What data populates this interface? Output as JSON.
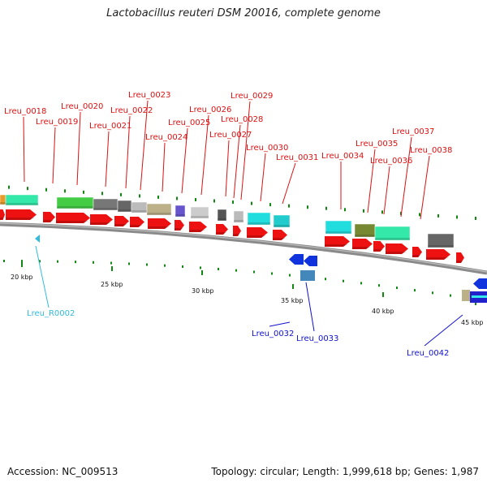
{
  "header": {
    "title": "Lactobacillus reuteri DSM 20016, complete genome"
  },
  "footer": {
    "accession": "Accession: NC_009513",
    "topology": "Topology: circular; Length: 1,999,618 bp; Genes: 1,987"
  },
  "colors": {
    "forward_label": "#dd1111",
    "reverse_label": "#1111cc",
    "rna_label": "#33bbdd",
    "cds": "#ee1111",
    "cds_reverse": "#1133dd",
    "backbone": "#888888",
    "tick": "#118811"
  },
  "scale_ticks": [
    "20 kbp",
    "25 kbp",
    "30 kbp",
    "35 kbp",
    "40 kbp",
    "45 kbp"
  ],
  "forward_genes": [
    "Lreu_0018",
    "Lreu_0019",
    "Lreu_0020",
    "Lreu_0021",
    "Lreu_0022",
    "Lreu_0023",
    "Lreu_0024",
    "Lreu_0025",
    "Lreu_0026",
    "Lreu_0027",
    "Lreu_0028",
    "Lreu_0029",
    "Lreu_0030",
    "Lreu_0031",
    "Lreu_0034",
    "Lreu_0035",
    "Lreu_0036",
    "Lreu_0037",
    "Lreu_0038"
  ],
  "reverse_genes": [
    "Lreu_0032",
    "Lreu_0033",
    "Lreu_0042"
  ],
  "rna_genes": [
    "Lreu_R0002"
  ]
}
